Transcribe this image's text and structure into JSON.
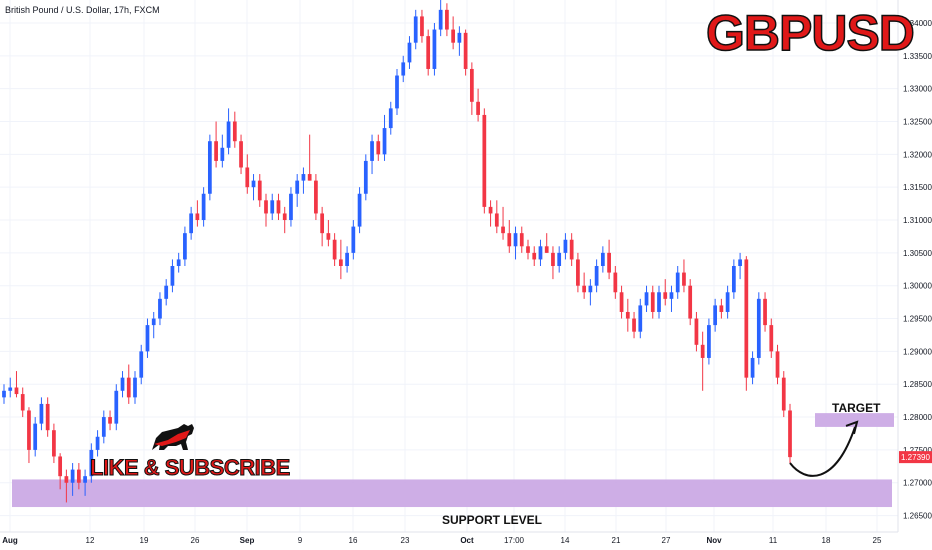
{
  "header": {
    "title": "British Pound / U.S. Dollar, 17h, FXCM"
  },
  "brand": {
    "title": "GBPUSD",
    "cta": "LIKE & SUBSCRIBE"
  },
  "annotations": {
    "target_label": "TARGET",
    "support_label": "SUPPORT LEVEL"
  },
  "colors": {
    "up": "#2962ff",
    "down": "#f23645",
    "zone": "#c9a5e3",
    "grid": "#f0f3fa",
    "brand": "#e01818"
  },
  "chart_data": {
    "type": "candlestick",
    "symbol": "GBPUSD",
    "timeframe": "17h",
    "last_price": "1.27390",
    "ylim": [
      1.2625,
      1.3435
    ],
    "y_ticks": [
      "1.26500",
      "1.27000",
      "1.27500",
      "1.28000",
      "1.28500",
      "1.29000",
      "1.29500",
      "1.30000",
      "1.30500",
      "1.31000",
      "1.31500",
      "1.32000",
      "1.32500",
      "1.33000",
      "1.33500",
      "1.34000"
    ],
    "x_ticks": [
      "Aug",
      "12",
      "19",
      "26",
      "Sep",
      "9",
      "16",
      "23",
      "Oct",
      "17:00",
      "14",
      "21",
      "27",
      "Nov",
      "11",
      "18",
      "25"
    ],
    "candles": [
      [
        1.283,
        1.285,
        1.282,
        1.284
      ],
      [
        1.284,
        1.286,
        1.283,
        1.2845
      ],
      [
        1.2845,
        1.287,
        1.283,
        1.2835
      ],
      [
        1.2835,
        1.2845,
        1.28,
        1.281
      ],
      [
        1.281,
        1.2815,
        1.273,
        1.275
      ],
      [
        1.275,
        1.28,
        1.274,
        1.279
      ],
      [
        1.279,
        1.283,
        1.278,
        1.282
      ],
      [
        1.282,
        1.283,
        1.277,
        1.278
      ],
      [
        1.278,
        1.279,
        1.273,
        1.274
      ],
      [
        1.274,
        1.2745,
        1.269,
        1.271
      ],
      [
        1.271,
        1.272,
        1.267,
        1.27
      ],
      [
        1.27,
        1.273,
        1.268,
        1.272
      ],
      [
        1.272,
        1.273,
        1.269,
        1.27
      ],
      [
        1.27,
        1.272,
        1.268,
        1.271
      ],
      [
        1.271,
        1.276,
        1.27,
        1.275
      ],
      [
        1.275,
        1.278,
        1.274,
        1.277
      ],
      [
        1.277,
        1.281,
        1.276,
        1.28
      ],
      [
        1.28,
        1.281,
        1.278,
        1.279
      ],
      [
        1.279,
        1.285,
        1.278,
        1.284
      ],
      [
        1.284,
        1.287,
        1.283,
        1.286
      ],
      [
        1.286,
        1.288,
        1.282,
        1.283
      ],
      [
        1.283,
        1.287,
        1.282,
        1.286
      ],
      [
        1.286,
        1.291,
        1.285,
        1.29
      ],
      [
        1.29,
        1.295,
        1.289,
        1.294
      ],
      [
        1.294,
        1.296,
        1.292,
        1.295
      ],
      [
        1.295,
        1.299,
        1.294,
        1.298
      ],
      [
        1.298,
        1.301,
        1.297,
        1.3
      ],
      [
        1.3,
        1.304,
        1.299,
        1.303
      ],
      [
        1.303,
        1.305,
        1.302,
        1.304
      ],
      [
        1.304,
        1.309,
        1.303,
        1.308
      ],
      [
        1.308,
        1.312,
        1.307,
        1.311
      ],
      [
        1.311,
        1.313,
        1.309,
        1.31
      ],
      [
        1.31,
        1.315,
        1.309,
        1.314
      ],
      [
        1.314,
        1.323,
        1.313,
        1.322
      ],
      [
        1.322,
        1.325,
        1.318,
        1.319
      ],
      [
        1.319,
        1.323,
        1.318,
        1.321
      ],
      [
        1.321,
        1.327,
        1.32,
        1.325
      ],
      [
        1.325,
        1.3265,
        1.321,
        1.322
      ],
      [
        1.322,
        1.323,
        1.317,
        1.318
      ],
      [
        1.318,
        1.32,
        1.314,
        1.315
      ],
      [
        1.315,
        1.317,
        1.313,
        1.316
      ],
      [
        1.316,
        1.317,
        1.312,
        1.313
      ],
      [
        1.313,
        1.314,
        1.309,
        1.311
      ],
      [
        1.311,
        1.314,
        1.31,
        1.313
      ],
      [
        1.313,
        1.314,
        1.31,
        1.311
      ],
      [
        1.311,
        1.312,
        1.308,
        1.31
      ],
      [
        1.31,
        1.315,
        1.309,
        1.314
      ],
      [
        1.314,
        1.317,
        1.312,
        1.316
      ],
      [
        1.316,
        1.318,
        1.314,
        1.317
      ],
      [
        1.317,
        1.323,
        1.316,
        1.316
      ],
      [
        1.316,
        1.317,
        1.31,
        1.311
      ],
      [
        1.311,
        1.312,
        1.306,
        1.308
      ],
      [
        1.308,
        1.31,
        1.306,
        1.307
      ],
      [
        1.307,
        1.308,
        1.303,
        1.304
      ],
      [
        1.304,
        1.307,
        1.301,
        1.303
      ],
      [
        1.303,
        1.306,
        1.302,
        1.305
      ],
      [
        1.305,
        1.31,
        1.304,
        1.309
      ],
      [
        1.309,
        1.315,
        1.308,
        1.314
      ],
      [
        1.314,
        1.32,
        1.313,
        1.319
      ],
      [
        1.319,
        1.323,
        1.317,
        1.322
      ],
      [
        1.322,
        1.323,
        1.319,
        1.32
      ],
      [
        1.32,
        1.326,
        1.319,
        1.324
      ],
      [
        1.324,
        1.328,
        1.323,
        1.327
      ],
      [
        1.327,
        1.333,
        1.326,
        1.332
      ],
      [
        1.332,
        1.335,
        1.331,
        1.334
      ],
      [
        1.334,
        1.338,
        1.333,
        1.337
      ],
      [
        1.337,
        1.342,
        1.336,
        1.341
      ],
      [
        1.341,
        1.342,
        1.337,
        1.338
      ],
      [
        1.338,
        1.339,
        1.332,
        1.333
      ],
      [
        1.333,
        1.34,
        1.332,
        1.339
      ],
      [
        1.339,
        1.3435,
        1.338,
        1.342
      ],
      [
        1.342,
        1.343,
        1.338,
        1.339
      ],
      [
        1.339,
        1.341,
        1.336,
        1.337
      ],
      [
        1.337,
        1.3395,
        1.335,
        1.3385
      ],
      [
        1.3385,
        1.339,
        1.332,
        1.333
      ],
      [
        1.333,
        1.334,
        1.326,
        1.328
      ],
      [
        1.328,
        1.33,
        1.325,
        1.326
      ],
      [
        1.326,
        1.327,
        1.311,
        1.312
      ],
      [
        1.312,
        1.313,
        1.309,
        1.311
      ],
      [
        1.311,
        1.313,
        1.308,
        1.309
      ],
      [
        1.309,
        1.312,
        1.307,
        1.308
      ],
      [
        1.308,
        1.31,
        1.305,
        1.306
      ],
      [
        1.306,
        1.309,
        1.304,
        1.308
      ],
      [
        1.308,
        1.309,
        1.305,
        1.306
      ],
      [
        1.306,
        1.307,
        1.304,
        1.305
      ],
      [
        1.305,
        1.306,
        1.303,
        1.304
      ],
      [
        1.304,
        1.307,
        1.303,
        1.306
      ],
      [
        1.306,
        1.308,
        1.305,
        1.305
      ],
      [
        1.305,
        1.306,
        1.301,
        1.303
      ],
      [
        1.303,
        1.306,
        1.302,
        1.305
      ],
      [
        1.305,
        1.308,
        1.304,
        1.307
      ],
      [
        1.307,
        1.308,
        1.303,
        1.304
      ],
      [
        1.304,
        1.305,
        1.299,
        1.3
      ],
      [
        1.3,
        1.302,
        1.298,
        1.299
      ],
      [
        1.299,
        1.301,
        1.297,
        1.3
      ],
      [
        1.3,
        1.304,
        1.299,
        1.303
      ],
      [
        1.303,
        1.306,
        1.302,
        1.305
      ],
      [
        1.305,
        1.307,
        1.301,
        1.302
      ],
      [
        1.302,
        1.303,
        1.298,
        1.299
      ],
      [
        1.299,
        1.3,
        1.295,
        1.296
      ],
      [
        1.296,
        1.298,
        1.293,
        1.295
      ],
      [
        1.295,
        1.296,
        1.292,
        1.293
      ],
      [
        1.293,
        1.298,
        1.292,
        1.297
      ],
      [
        1.297,
        1.3,
        1.296,
        1.299
      ],
      [
        1.299,
        1.3,
        1.295,
        1.296
      ],
      [
        1.296,
        1.3,
        1.295,
        1.299
      ],
      [
        1.299,
        1.301,
        1.297,
        1.298
      ],
      [
        1.298,
        1.3,
        1.296,
        1.299
      ],
      [
        1.299,
        1.303,
        1.298,
        1.302
      ],
      [
        1.302,
        1.304,
        1.299,
        1.3
      ],
      [
        1.3,
        1.301,
        1.294,
        1.295
      ],
      [
        1.295,
        1.296,
        1.29,
        1.291
      ],
      [
        1.291,
        1.293,
        1.284,
        1.289
      ],
      [
        1.289,
        1.295,
        1.288,
        1.294
      ],
      [
        1.294,
        1.298,
        1.293,
        1.297
      ],
      [
        1.297,
        1.298,
        1.295,
        1.296
      ],
      [
        1.296,
        1.3,
        1.295,
        1.299
      ],
      [
        1.299,
        1.304,
        1.298,
        1.303
      ],
      [
        1.303,
        1.305,
        1.301,
        1.304
      ],
      [
        1.304,
        1.3045,
        1.284,
        1.286
      ],
      [
        1.286,
        1.29,
        1.285,
        1.289
      ],
      [
        1.289,
        1.299,
        1.288,
        1.298
      ],
      [
        1.298,
        1.299,
        1.293,
        1.294
      ],
      [
        1.294,
        1.295,
        1.289,
        1.29
      ],
      [
        1.29,
        1.291,
        1.285,
        1.286
      ],
      [
        1.286,
        1.287,
        1.28,
        1.281
      ],
      [
        1.281,
        1.282,
        1.273,
        1.2739
      ]
    ]
  }
}
